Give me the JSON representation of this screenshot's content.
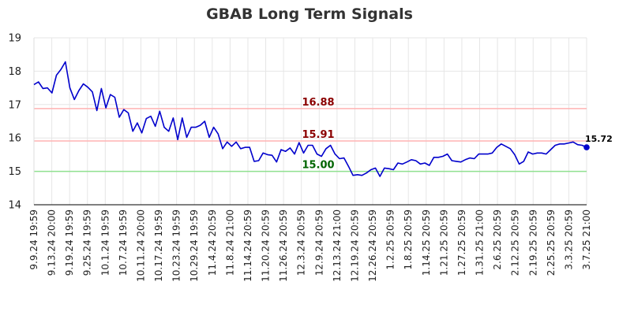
{
  "chart_data": {
    "type": "line",
    "title": "GBAB Long Term Signals",
    "xlabel": "",
    "ylabel": "",
    "ylim": [
      14,
      19
    ],
    "yticks": [
      14,
      15,
      16,
      17,
      18,
      19
    ],
    "grid": true,
    "x_tick_labels": [
      "9.9.24 19:59",
      "9.13.24 20:00",
      "9.19.24 19:59",
      "9.25.24 19:59",
      "10.1.24 19:59",
      "10.7.24 19:59",
      "10.11.24 20:00",
      "10.17.24 19:59",
      "10.23.24 19:59",
      "10.29.24 19:59",
      "11.4.24 20:59",
      "11.8.24 21:00",
      "11.14.24 20:59",
      "11.20.24 20:59",
      "11.26.24 20:59",
      "12.3.24 20:59",
      "12.9.24 20:59",
      "12.13.24 21:00",
      "12.19.24 20:59",
      "12.26.24 20:59",
      "1.2.25 20:59",
      "1.8.25 20:59",
      "1.14.25 20:59",
      "1.21.25 20:59",
      "1.27.25 20:59",
      "1.31.25 21:00",
      "2.6.25 20:59",
      "2.12.25 20:59",
      "2.19.25 20:59",
      "2.25.25 20:59",
      "3.3.25 20:59",
      "3.7.25 21:00"
    ],
    "reference_lines": [
      {
        "value": 16.88,
        "label": "16.88",
        "line_color": "#ffb3b3",
        "label_color": "#8b0000"
      },
      {
        "value": 15.91,
        "label": "15.91",
        "line_color": "#ffb3b3",
        "label_color": "#8b0000"
      },
      {
        "value": 15.0,
        "label": "15.00",
        "line_color": "#90e090",
        "label_color": "#006400"
      }
    ],
    "series": [
      {
        "color": "#0000cc",
        "values": [
          17.6,
          17.68,
          17.48,
          17.5,
          17.35,
          17.88,
          18.05,
          18.28,
          17.5,
          17.15,
          17.42,
          17.62,
          17.52,
          17.38,
          16.82,
          17.48,
          16.9,
          17.3,
          17.22,
          16.62,
          16.85,
          16.75,
          16.2,
          16.45,
          16.15,
          16.58,
          16.65,
          16.35,
          16.8,
          16.32,
          16.2,
          16.6,
          15.95,
          16.6,
          16.02,
          16.32,
          16.32,
          16.38,
          16.5,
          16.02,
          16.32,
          16.12,
          15.68,
          15.88,
          15.75,
          15.88,
          15.68,
          15.72,
          15.72,
          15.3,
          15.32,
          15.55,
          15.5,
          15.48,
          15.28,
          15.65,
          15.6,
          15.7,
          15.52,
          15.86,
          15.55,
          15.78,
          15.78,
          15.52,
          15.45,
          15.68,
          15.78,
          15.52,
          15.38,
          15.4,
          15.15,
          14.88,
          14.9,
          14.88,
          14.95,
          15.05,
          15.1,
          14.85,
          15.1,
          15.08,
          15.05,
          15.25,
          15.22,
          15.28,
          15.35,
          15.32,
          15.22,
          15.25,
          15.18,
          15.42,
          15.42,
          15.45,
          15.52,
          15.32,
          15.3,
          15.28,
          15.35,
          15.4,
          15.38,
          15.52,
          15.52,
          15.52,
          15.55,
          15.72,
          15.82,
          15.75,
          15.68,
          15.5,
          15.22,
          15.3,
          15.58,
          15.52,
          15.55,
          15.55,
          15.52,
          15.65,
          15.78,
          15.82,
          15.82,
          15.85,
          15.88,
          15.8,
          15.78,
          15.72
        ]
      }
    ],
    "last_value": 15.72,
    "last_value_label": "15.72"
  }
}
